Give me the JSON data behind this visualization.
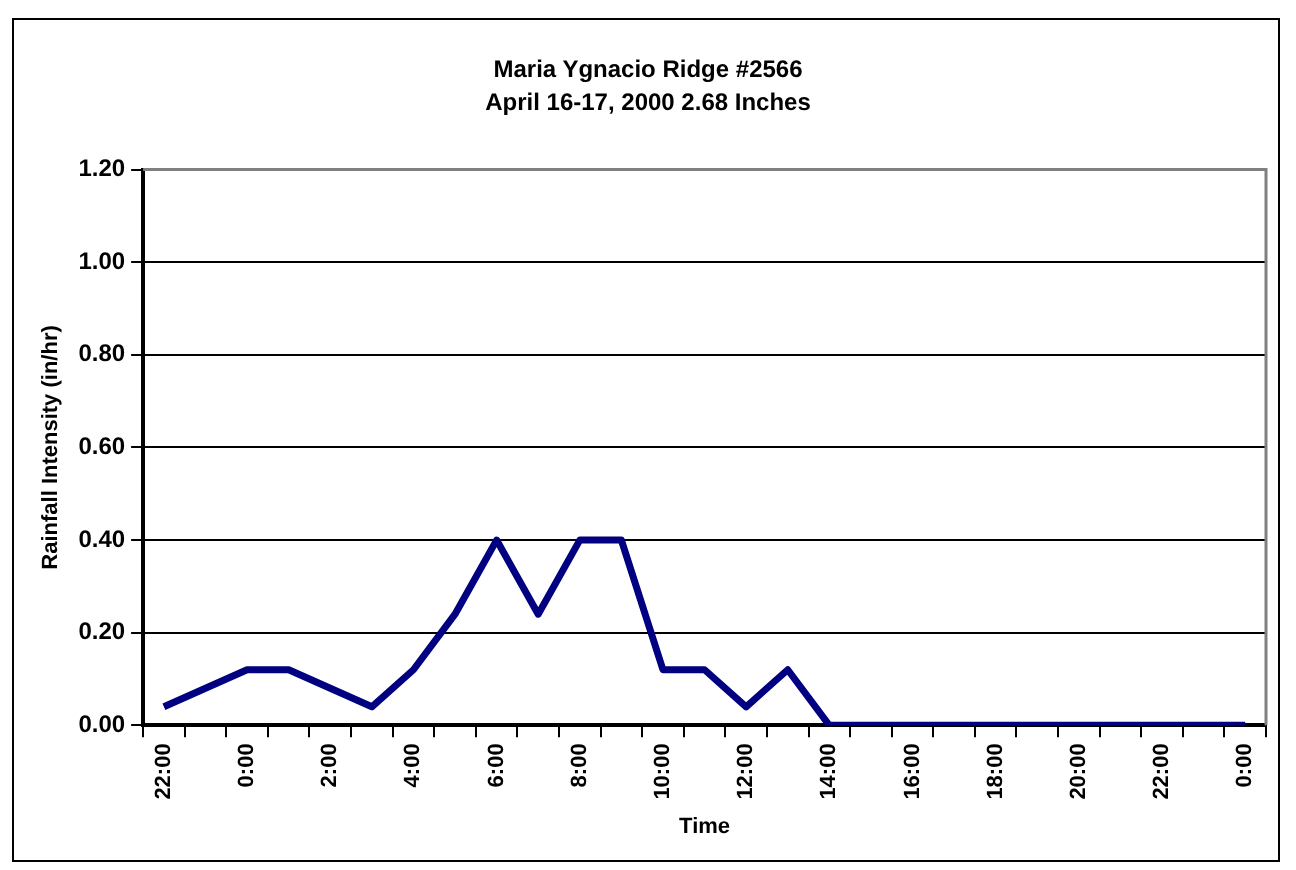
{
  "chart_data": {
    "type": "line",
    "title": "Maria Ygnacio Ridge #2566",
    "subtitle": "April 16-17, 2000 2.68 Inches",
    "xlabel": "Time",
    "ylabel": "Rainfall Intensity (in/hr)",
    "categories": [
      "22:00",
      null,
      "0:00",
      null,
      "2:00",
      null,
      "4:00",
      null,
      "6:00",
      null,
      "8:00",
      null,
      "10:00",
      null,
      "12:00",
      null,
      "14:00",
      null,
      "16:00",
      null,
      "18:00",
      null,
      "20:00",
      null,
      "22:00",
      null,
      "0:00"
    ],
    "series": [
      {
        "color": "#000080",
        "values": [
          0.04,
          0.08,
          0.12,
          0.12,
          0.08,
          0.04,
          0.12,
          0.24,
          0.4,
          0.24,
          0.4,
          0.4,
          0.12,
          0.12,
          0.04,
          0.12,
          0.0,
          0.0,
          0.0,
          0.0,
          0.0,
          0.0,
          0.0,
          0.0,
          0.0,
          0.0,
          0.0
        ]
      }
    ],
    "ylim": [
      0,
      1.2
    ],
    "yticks": [
      {
        "value": 0,
        "label": "0.00"
      },
      {
        "value": 0.2,
        "label": "0.20"
      },
      {
        "value": 0.4,
        "label": "0.40"
      },
      {
        "value": 0.6,
        "label": "0.60"
      },
      {
        "value": 0.8,
        "label": "0.80"
      },
      {
        "value": 1.0,
        "label": "1.00"
      },
      {
        "value": 1.2,
        "label": "1.20"
      }
    ],
    "grid": "y",
    "legend": false,
    "marker": "none",
    "line_style": "solid"
  }
}
